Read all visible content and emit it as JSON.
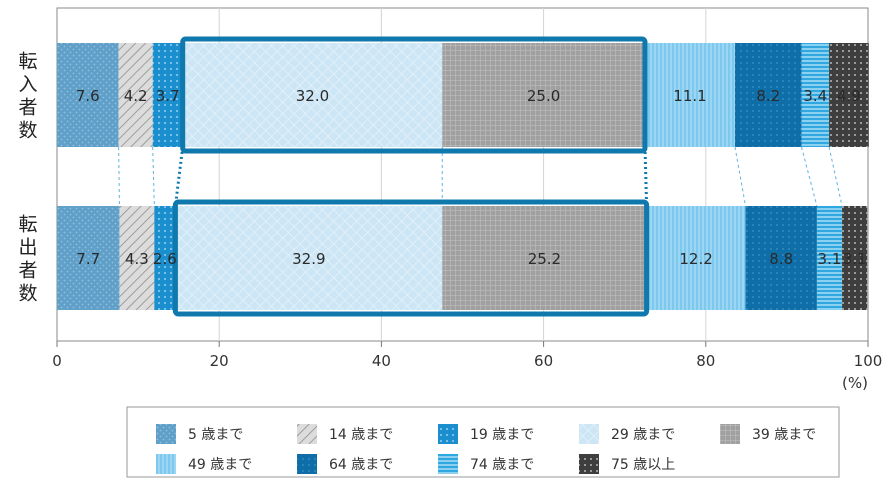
{
  "chart_data": {
    "type": "bar",
    "orientation": "horizontal-stacked-percent",
    "x_unit": "(%)",
    "xlim": [
      0,
      100
    ],
    "x_ticks": [
      "0",
      "20",
      "40",
      "60",
      "80",
      "100"
    ],
    "categories": [
      "転入者数",
      "転出者数"
    ],
    "series": [
      {
        "name": "5 歳まで",
        "values": [
          7.6,
          7.7
        ],
        "labels": [
          "7.6",
          "7.7"
        ],
        "color": "#5f9fc8"
      },
      {
        "name": "14 歳まで",
        "values": [
          4.2,
          4.3
        ],
        "labels": [
          "4.2",
          "4.3"
        ],
        "color": "#cfcfcf"
      },
      {
        "name": "19 歳まで",
        "values": [
          3.7,
          2.6
        ],
        "labels": [
          "3.7",
          "2.6"
        ],
        "color": "#1b8fcd"
      },
      {
        "name": "29 歳まで",
        "values": [
          32.0,
          32.9
        ],
        "labels": [
          "32.0",
          "32.9"
        ],
        "color": "#cde6f5"
      },
      {
        "name": "39 歳まで",
        "values": [
          25.0,
          25.2
        ],
        "labels": [
          "25.0",
          "25.2"
        ],
        "color": "#a5a5a5"
      },
      {
        "name": "49 歳まで",
        "values": [
          11.1,
          12.2
        ],
        "labels": [
          "11.1",
          "12.2"
        ],
        "color": "#86cdf0"
      },
      {
        "name": "64 歳まで",
        "values": [
          8.2,
          8.8
        ],
        "labels": [
          "8.2",
          "8.8"
        ],
        "color": "#0f6ea8"
      },
      {
        "name": "74 歳まで",
        "values": [
          3.4,
          3.1
        ],
        "labels": [
          "3.4",
          "3.1"
        ],
        "color": "#2fa7e0"
      },
      {
        "name": "75 歳以上",
        "values": [
          4.9,
          3.1
        ],
        "labels": [
          "4.9",
          "3.1"
        ],
        "color": "#444444"
      }
    ],
    "highlight_series": [
      "29 歳まで",
      "39 歳まで"
    ],
    "highlight_color": "#0f78ad",
    "legend_position": "bottom",
    "grid": true
  }
}
